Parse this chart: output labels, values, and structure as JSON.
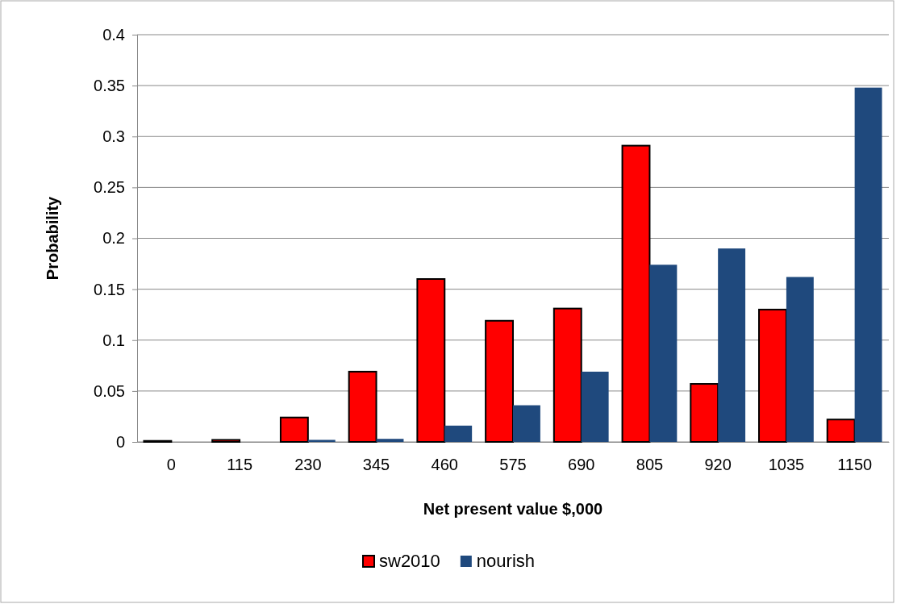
{
  "chart_data": {
    "type": "bar",
    "xlabel": "Net present value $,000",
    "ylabel": "Probability",
    "categories": [
      "0",
      "115",
      "230",
      "345",
      "460",
      "575",
      "690",
      "805",
      "920",
      "1035",
      "1150"
    ],
    "series": [
      {
        "name": "sw2010",
        "color": "#ff0000",
        "values": [
          0.001,
          0.002,
          0.024,
          0.069,
          0.16,
          0.119,
          0.131,
          0.291,
          0.057,
          0.13,
          0.022
        ]
      },
      {
        "name": "nourish",
        "color": "#1f497d",
        "values": [
          0,
          0,
          0.002,
          0.003,
          0.016,
          0.036,
          0.069,
          0.174,
          0.19,
          0.162,
          0.348
        ]
      }
    ],
    "ylim": [
      0,
      0.4
    ],
    "yticks": [
      0,
      0.05,
      0.1,
      0.15,
      0.2,
      0.25,
      0.3,
      0.35,
      0.4
    ],
    "grid": "y",
    "legend": "bottom"
  }
}
